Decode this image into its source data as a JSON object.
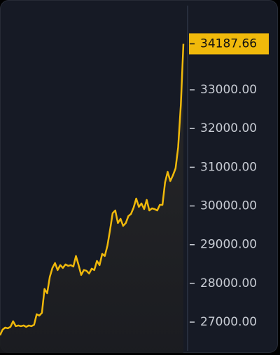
{
  "chart_data": {
    "type": "line",
    "values": [
      26659,
      26804,
      26859,
      26841,
      26877,
      27022,
      26895,
      26913,
      26895,
      26913,
      26877,
      26913,
      26895,
      26931,
      27203,
      27167,
      27239,
      27855,
      27746,
      28163,
      28399,
      28525,
      28344,
      28471,
      28399,
      28489,
      28453,
      28471,
      28435,
      28707,
      28471,
      28217,
      28344,
      28326,
      28254,
      28380,
      28344,
      28580,
      28471,
      28761,
      28707,
      28978,
      29377,
      29812,
      29884,
      29558,
      29667,
      29486,
      29558,
      29739,
      29793,
      29957,
      30192,
      29975,
      30065,
      29920,
      30156,
      29884,
      29938,
      29920,
      29884,
      30029,
      30029,
      30609,
      30880,
      30645,
      30790,
      30971,
      31514,
      32601,
      34187.66
    ],
    "color": "#f0b90b",
    "ylim": [
      26150,
      35320
    ],
    "yticks": [
      {
        "value": 27000,
        "label": "27000.00"
      },
      {
        "value": 28000,
        "label": "28000.00"
      },
      {
        "value": 29000,
        "label": "29000.00"
      },
      {
        "value": 30000,
        "label": "30000.00"
      },
      {
        "value": 31000,
        "label": "31000.00"
      },
      {
        "value": 32000,
        "label": "32000.00"
      },
      {
        "value": 33000,
        "label": "33000.00"
      }
    ]
  }
}
